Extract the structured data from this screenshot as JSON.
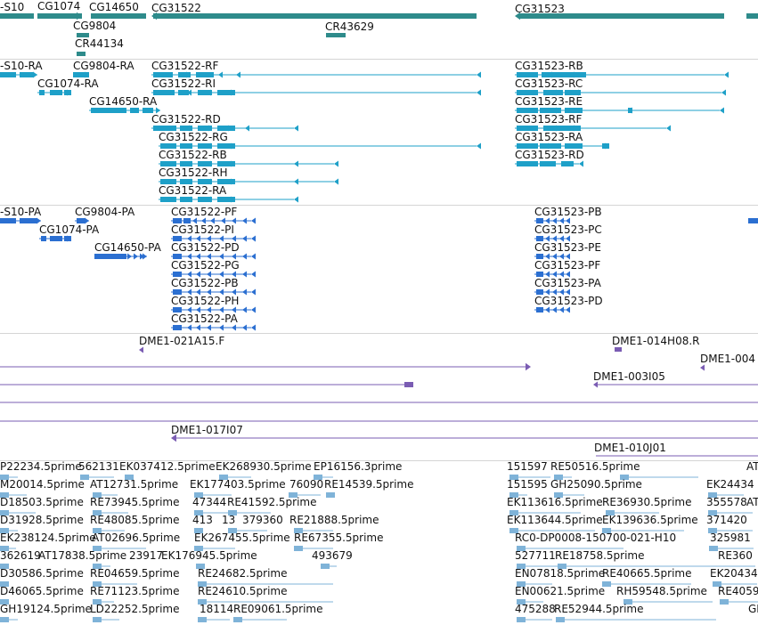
{
  "colors": {
    "gene": "#2e8b8b",
    "transcript": "#1ea0c8",
    "protein": "#2b6fd1",
    "clone": "#7a5cb3",
    "est": "#7fb3d8",
    "separator": "#d5d5d5",
    "text": "#111111"
  },
  "tracks": {
    "genes": {
      "labels": [
        "-S10",
        "CG1074",
        "CG14650",
        "CG31522",
        "CG31523",
        "CG9804",
        "CR43629",
        "CR44134"
      ],
      "icons": [
        "gene-bar",
        "arrow-left-icon",
        "arrow-right-icon"
      ]
    },
    "transcripts": {
      "labels": [
        "-S10-RA",
        "CG9804-RA",
        "CG31522-RF",
        "CG31523-RB",
        "CG1074-RA",
        "CG31522-RI",
        "CG31523-RC",
        "CG14650-RA",
        "CG31523-RE",
        "CG31522-RD",
        "CG31523-RF",
        "CG31522-RG",
        "CG31523-RA",
        "CG31522-RB",
        "CG31523-RD",
        "CG31522-RH",
        "CG31522-RA"
      ]
    },
    "proteins": {
      "labels": [
        "-S10-PA",
        "CG9804-PA",
        "CG31522-PF",
        "CG31523-PB",
        "CG1074-PA",
        "CG31522-PI",
        "CG31523-PC",
        "CG14650-PA",
        "CG31522-PD",
        "CG31523-PE",
        "CG31522-PG",
        "CG31523-PF",
        "CG31522-PB",
        "CG31523-PA",
        "CG31522-PH",
        "CG31523-PD",
        "CG31522-PA"
      ]
    },
    "clones": {
      "labels": [
        "DME1-021A15.F",
        "DME1-014H08.R",
        "DME1-004",
        "DME1-003I05",
        "DME1-017I07",
        "DME1-010J01"
      ]
    },
    "ests": {
      "labels": [
        "P22234.5prime",
        "562131",
        "EK037412.5prime",
        "EK268930.5prime",
        "EP16156.3prime",
        "151597",
        "RE50516.5prime",
        "AT",
        "M20014.5prime",
        "AT12731.5prime",
        "EK177403.5prime",
        "76090",
        "RE14539.5prime",
        "151595",
        "GH25090.5prime",
        "EK24434",
        "D18503.5prime",
        "RE73945.5prime",
        "47344",
        "RE41592.5prime",
        "EK113616.5prime",
        "RE36930.5prime",
        "355578",
        "AT",
        "D31928.5prime",
        "RE48085.5prime",
        "413",
        "13",
        "379360",
        "RE21888.5prime",
        "EK113644.5prime",
        "EK139636.5prime",
        "371420",
        "EK238124.5prime",
        "AT02696.5prime",
        "EK267455.5prime",
        "RE67355.5prime",
        "RC0-DP0008-150700-021-H10",
        "325981",
        "362619",
        "AT17838.5prime",
        "23917",
        "EK176945.5prime",
        "493679",
        "527711",
        "RE18758.5prime",
        "RE360",
        "D30586.5prime",
        "RE04659.5prime",
        "RE24682.5prime",
        "EN07818.5prime",
        "RE40665.5prime",
        "EK20434",
        "D46065.5prime",
        "RE71123.5prime",
        "RE24610.5prime",
        "EN00621.5prime",
        "RH59548.5prime",
        "RE4059",
        "GH19124.5prime",
        "LD22252.5prime",
        "18114",
        "RE09061.5prime",
        "475288",
        "RE52944.5prime",
        "GI"
      ]
    }
  }
}
